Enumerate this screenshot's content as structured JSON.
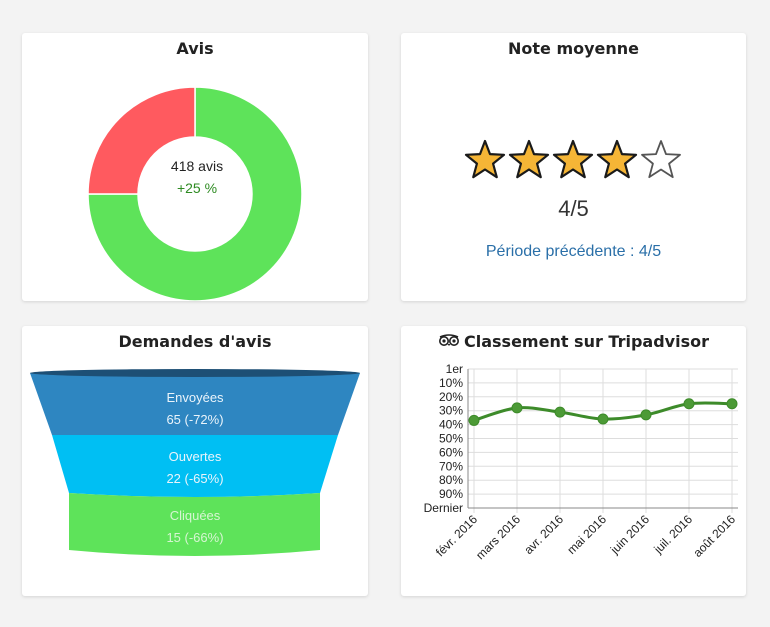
{
  "avis": {
    "title": "Avis",
    "count_label": "418 avis",
    "growth_label": "+25 %",
    "colors": {
      "positive": "#5ee35a",
      "negative": "#ff5a5f"
    }
  },
  "note": {
    "title": "Note moyenne",
    "rating": 4,
    "max": 5,
    "rating_label": "4/5",
    "previous_label": "Période précédente : 4/5",
    "colors": {
      "star_fill": "#f5b536",
      "star_empty": "#ffffff"
    }
  },
  "demandes": {
    "title": "Demandes d'avis",
    "stages": [
      {
        "label": "Envoyées",
        "value": "65 (-72%)",
        "color": "#2e86c1"
      },
      {
        "label": "Ouvertes",
        "value": "22 (-65%)",
        "color": "#00bff3"
      },
      {
        "label": "Cliquées",
        "value": "15 (-66%)",
        "color": "#5ee35a"
      }
    ]
  },
  "classement": {
    "title": "Classement sur Tripadvisor",
    "icon": "tripadvisor-owl-icon"
  },
  "chart_data": [
    {
      "type": "pie",
      "variant": "donut",
      "categories": [
        "positive",
        "negative"
      ],
      "values": [
        75,
        25
      ],
      "title": "Avis"
    },
    {
      "type": "line",
      "title": "Classement sur Tripadvisor",
      "categories": [
        "févr. 2016",
        "mars 2016",
        "avr. 2016",
        "mai 2016",
        "juin 2016",
        "juil. 2016",
        "août 2016"
      ],
      "series": [
        {
          "values": [
            37,
            28,
            31,
            36,
            33,
            25,
            25
          ]
        }
      ],
      "ytick_labels": [
        "1er",
        "10%",
        "20%",
        "30%",
        "40%",
        "50%",
        "60%",
        "70%",
        "80%",
        "90%",
        "Dernier"
      ],
      "ylim": [
        0,
        100
      ],
      "y_inverted": true,
      "grid": true,
      "color": "#3d8b2a"
    }
  ]
}
